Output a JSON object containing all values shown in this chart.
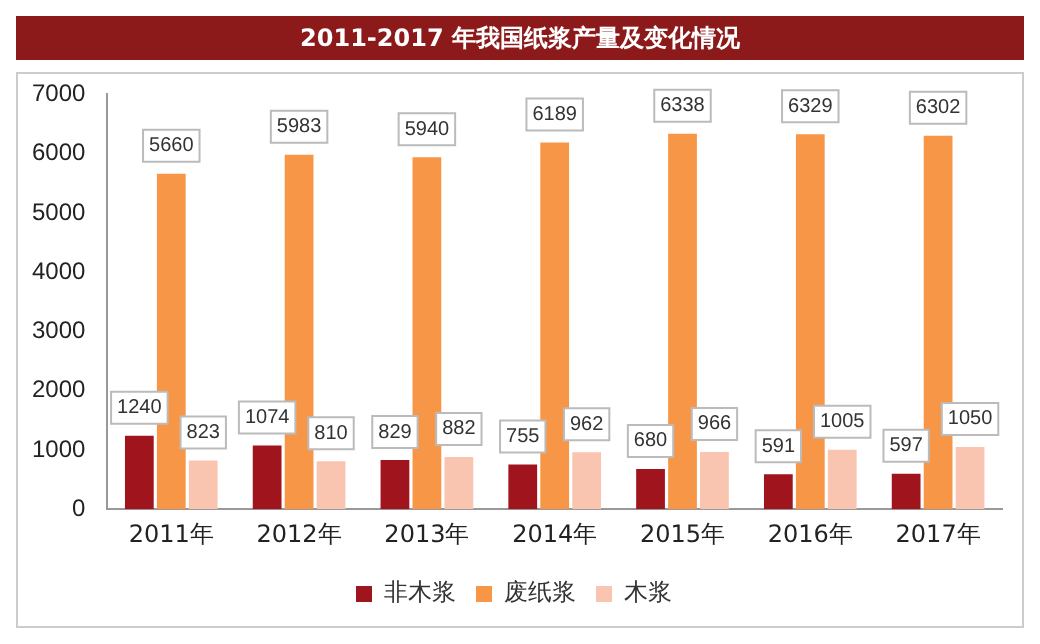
{
  "chart_data": {
    "type": "bar",
    "title": "2011-2017 年我国纸浆产量及变化情况",
    "categories": [
      "2011年",
      "2012年",
      "2013年",
      "2014年",
      "2015年",
      "2016年",
      "2017年"
    ],
    "series": [
      {
        "name": "非木浆",
        "color": "#a0141e",
        "values": [
          1240,
          1074,
          829,
          755,
          680,
          591,
          597
        ]
      },
      {
        "name": "废纸浆",
        "color": "#f79646",
        "values": [
          5660,
          5983,
          5940,
          6189,
          6338,
          6329,
          6302
        ]
      },
      {
        "name": "木浆",
        "color": "#f9c5b0",
        "values": [
          823,
          810,
          882,
          962,
          966,
          1005,
          1050
        ]
      }
    ],
    "ylim": [
      0,
      7000
    ],
    "yticks": [
      0,
      1000,
      2000,
      3000,
      4000,
      5000,
      6000,
      7000
    ],
    "grid": false,
    "legend": "bottom",
    "data_labels": true
  }
}
